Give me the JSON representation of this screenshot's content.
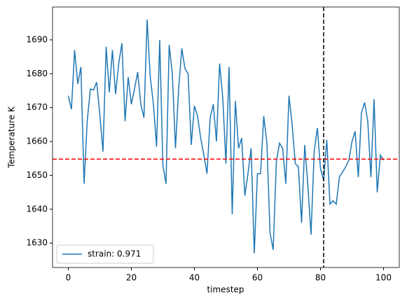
{
  "chart_data": {
    "type": "line",
    "xlabel": "timestep",
    "ylabel": "Temperature K",
    "x": [
      0,
      1,
      2,
      3,
      4,
      5,
      6,
      7,
      8,
      9,
      10,
      11,
      12,
      13,
      14,
      15,
      16,
      17,
      18,
      19,
      20,
      21,
      22,
      23,
      24,
      25,
      26,
      27,
      28,
      29,
      30,
      31,
      32,
      33,
      34,
      35,
      36,
      37,
      38,
      39,
      40,
      41,
      42,
      43,
      44,
      45,
      46,
      47,
      48,
      49,
      50,
      51,
      52,
      53,
      54,
      55,
      56,
      57,
      58,
      59,
      60,
      61,
      62,
      63,
      64,
      65,
      66,
      67,
      68,
      69,
      70,
      71,
      72,
      73,
      74,
      75,
      76,
      77,
      78,
      79,
      80,
      81,
      82,
      83,
      84,
      85,
      86,
      87,
      88,
      89,
      90,
      91,
      92,
      93,
      94,
      95,
      96,
      97,
      98,
      99,
      100
    ],
    "series": [
      {
        "name": "strain: 0.971",
        "color": "#1f77b4",
        "values": [
          1673.5,
          1669.5,
          1687,
          1677,
          1682,
          1647.5,
          1666,
          1675.5,
          1675.2,
          1677.5,
          1668,
          1657,
          1688,
          1674.5,
          1687,
          1674,
          1683,
          1689,
          1666,
          1679,
          1671,
          1675.5,
          1680.5,
          1671,
          1667,
          1696,
          1679,
          1671,
          1658.5,
          1690,
          1653,
          1647.5,
          1688.5,
          1680,
          1658,
          1675.5,
          1687.5,
          1681.5,
          1680,
          1659,
          1670.5,
          1667.5,
          1661,
          1656,
          1650.5,
          1667,
          1671,
          1660,
          1683,
          1673,
          1653.5,
          1682,
          1638.5,
          1672,
          1658,
          1661,
          1644,
          1650.5,
          1658,
          1627,
          1650.5,
          1650.5,
          1667.5,
          1659.5,
          1633,
          1628,
          1654,
          1659.5,
          1658,
          1647.5,
          1673.5,
          1665,
          1653.5,
          1652.5,
          1636,
          1659,
          1647,
          1632.5,
          1657,
          1664,
          1652,
          1648.5,
          1660.5,
          1641.5,
          1642.5,
          1641.5,
          1649.5,
          1651,
          1652.5,
          1654.5,
          1660,
          1663,
          1649.5,
          1668.5,
          1671.5,
          1666,
          1649.5,
          1672.5,
          1645,
          1656,
          1654.5
        ]
      }
    ],
    "reference_lines": [
      {
        "axis": "y",
        "value": 1654.8,
        "color": "#ff0000"
      },
      {
        "axis": "x",
        "value": 81,
        "color": "#000000"
      }
    ],
    "xlim": [
      -5,
      105
    ],
    "xticks": [
      0,
      20,
      40,
      60,
      80,
      100
    ],
    "ylim": [
      1622.8,
      1699.7
    ],
    "yticks": [
      1630,
      1640,
      1650,
      1660,
      1670,
      1680,
      1690
    ],
    "legend": "lower left"
  }
}
